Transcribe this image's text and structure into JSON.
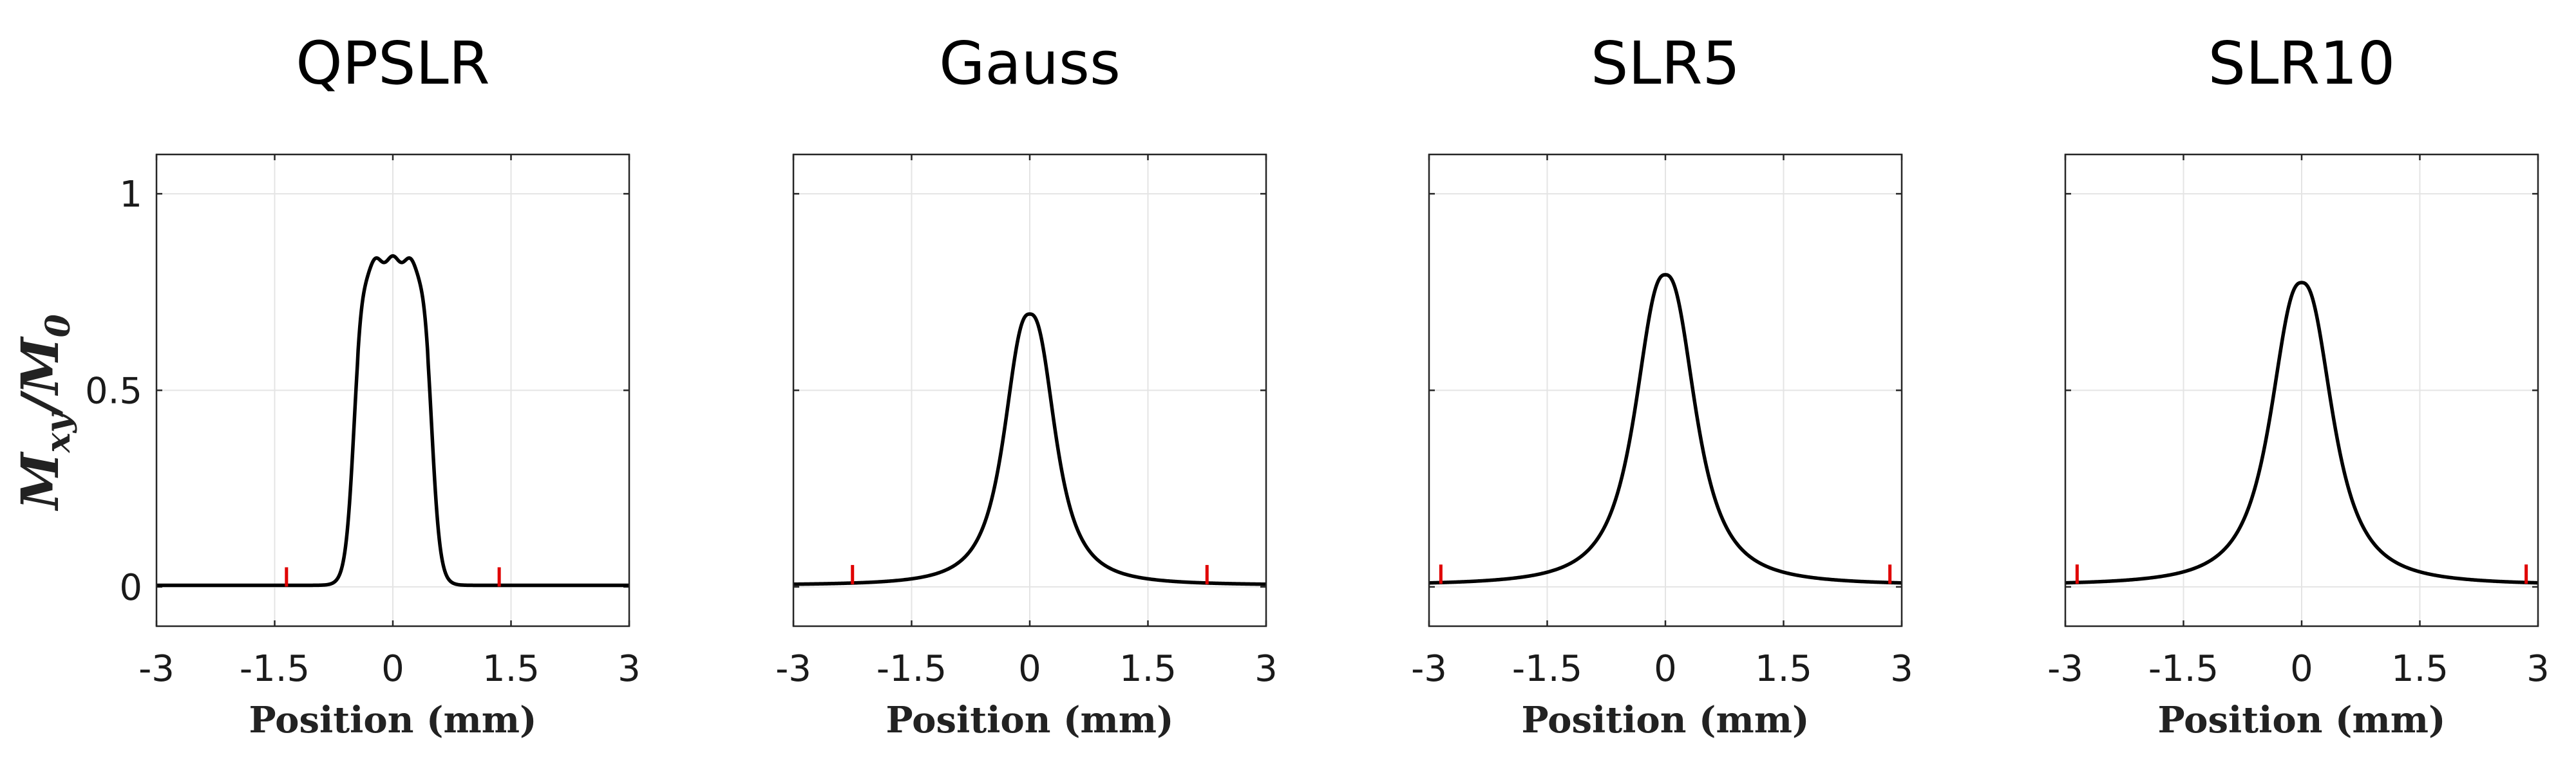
{
  "figure": {
    "ylabel": {
      "base": "M",
      "sub1": "xy",
      "slash": "/",
      "base2": "M",
      "sub2": "0"
    },
    "xlabel": "Position (mm)"
  },
  "colors": {
    "curve": "#000000",
    "marker": "#e00000"
  },
  "chart_data": [
    {
      "type": "line",
      "title": "QPSLR",
      "shape": "flat",
      "peak": 0.83,
      "fwhm": 0.98,
      "edge": 0.055,
      "ripple": 0.008,
      "markers": [
        -1.35,
        1.35
      ],
      "xlim": [
        -3,
        3
      ],
      "ylim": [
        -0.1,
        1.1
      ],
      "xticks": [
        "-3",
        "-1.5",
        "0",
        "1.5",
        "3"
      ],
      "yticks": [
        "0",
        "0.5",
        "1"
      ],
      "xlabel": "Position (mm)",
      "ylabel": "Mxy/M0"
    },
    {
      "type": "line",
      "title": "Gauss",
      "shape": "bell",
      "peak": 0.69,
      "fwhm": 0.72,
      "power": 2.6,
      "markers": [
        -2.25,
        2.25
      ],
      "xlim": [
        -3,
        3
      ],
      "ylim": [
        -0.1,
        1.1
      ],
      "xticks": [
        "-3",
        "-1.5",
        "0",
        "1.5",
        "3"
      ],
      "yticks": [
        "0",
        "0.5",
        "1"
      ],
      "xlabel": "Position (mm)",
      "ylabel": "Mxy/M0"
    },
    {
      "type": "line",
      "title": "SLR5",
      "shape": "bell",
      "peak": 0.79,
      "fwhm": 0.86,
      "power": 2.5,
      "markers": [
        -2.85,
        2.85
      ],
      "xlim": [
        -3,
        3
      ],
      "ylim": [
        -0.1,
        1.1
      ],
      "xticks": [
        "-3",
        "-1.5",
        "0",
        "1.5",
        "3"
      ],
      "yticks": [
        "0",
        "0.5",
        "1"
      ],
      "xlabel": "Position (mm)",
      "ylabel": "Mxy/M0"
    },
    {
      "type": "line",
      "title": "SLR10",
      "shape": "bell",
      "peak": 0.77,
      "fwhm": 0.88,
      "power": 2.5,
      "markers": [
        -2.85,
        2.85
      ],
      "xlim": [
        -3,
        3
      ],
      "ylim": [
        -0.1,
        1.1
      ],
      "xticks": [
        "-3",
        "-1.5",
        "0",
        "1.5",
        "3"
      ],
      "yticks": [
        "0",
        "0.5",
        "1"
      ],
      "xlabel": "Position (mm)",
      "ylabel": "Mxy/M0"
    }
  ]
}
